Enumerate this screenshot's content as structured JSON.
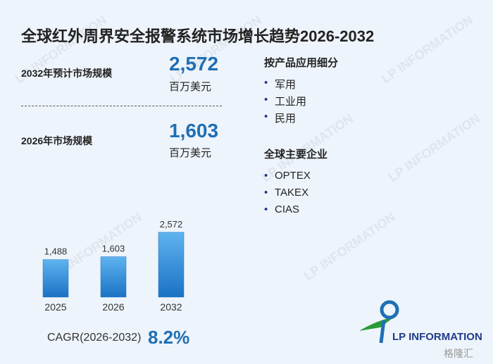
{
  "title": "全球红外周界安全报警系统市场增长趋势2026-2032",
  "stats": [
    {
      "label": "2032年预计市场规模",
      "value": "2,572",
      "unit": "百万美元"
    },
    {
      "label": "2026年市场规模",
      "value": "1,603",
      "unit": "百万美元"
    }
  ],
  "segments": {
    "heading": "按产品应用细分",
    "items": [
      "军用",
      "工业用",
      "民用"
    ]
  },
  "companies": {
    "heading": "全球主要企业",
    "items": [
      "OPTEX",
      "TAKEX",
      "CIAS"
    ]
  },
  "cagr": {
    "label": "CAGR(2026-2032)",
    "value": "8.2%"
  },
  "logo_text": "LP INFORMATION",
  "corner_watermark": "格隆汇",
  "chart_data": {
    "type": "bar",
    "categories": [
      "2025",
      "2026",
      "2032"
    ],
    "values": [
      1488,
      1603,
      2572
    ],
    "value_labels": [
      "1,488",
      "1,603",
      "2,572"
    ],
    "color": "#1a72c4"
  }
}
